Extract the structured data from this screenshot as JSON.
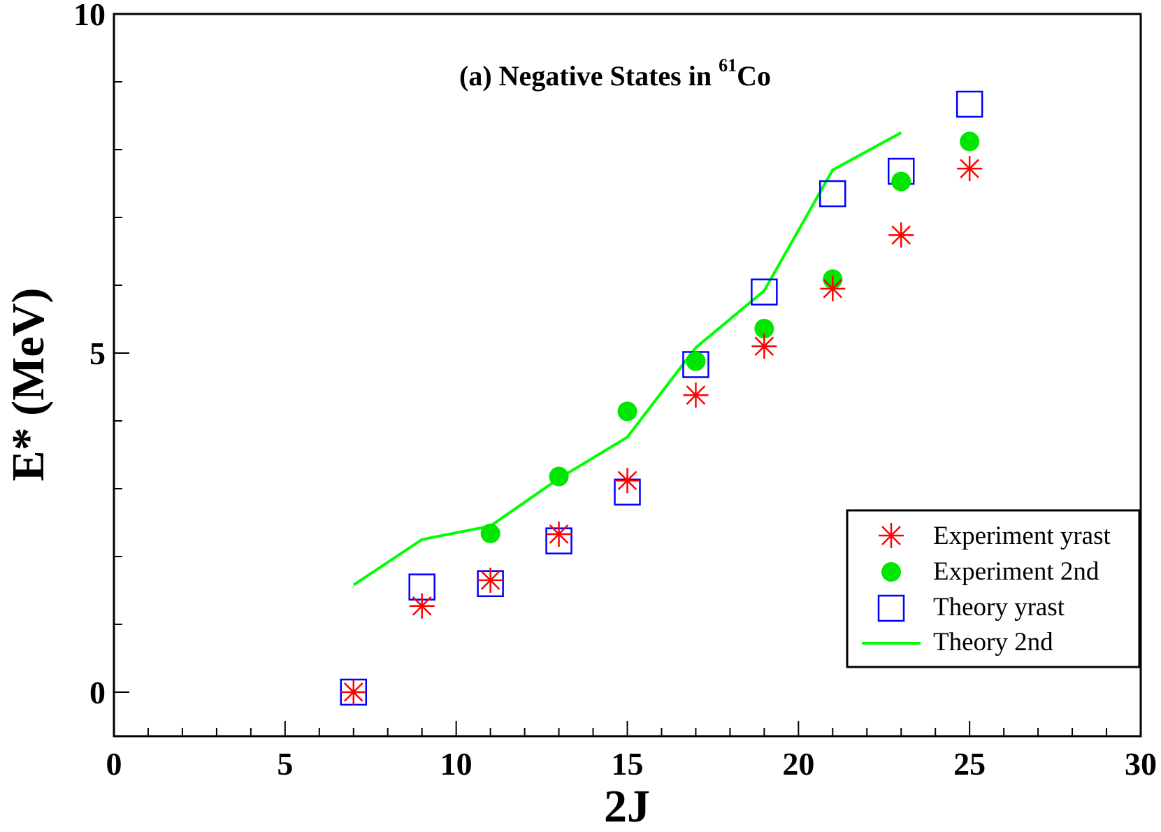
{
  "chart_data": {
    "type": "scatter",
    "title": "(a) Negative States in ",
    "title_superscript": "61",
    "title_suffix": "Co",
    "xlabel": "2J",
    "ylabel": "E* (MeV)",
    "xlim": [
      0,
      30
    ],
    "ylim": [
      -0.65,
      10
    ],
    "x_ticks": [
      0,
      5,
      10,
      15,
      20,
      25,
      30
    ],
    "y_ticks": [
      0,
      5,
      10
    ],
    "x_tick_labels": [
      "0",
      "5",
      "10",
      "15",
      "20",
      "25",
      "30"
    ],
    "y_tick_labels": [
      "0",
      "5",
      "10"
    ],
    "legend_position": "bottom-right",
    "series": [
      {
        "name": "Experiment yrast",
        "marker": "asterisk",
        "color": "#ff0000",
        "x": [
          7,
          9,
          11,
          13,
          15,
          17,
          19,
          21,
          23,
          25
        ],
        "y": [
          0.0,
          1.27,
          1.65,
          2.33,
          3.12,
          4.38,
          5.1,
          5.95,
          6.74,
          7.72
        ]
      },
      {
        "name": "Experiment 2nd",
        "marker": "filled-circle",
        "color": "#00e600",
        "x": [
          11,
          13,
          15,
          17,
          19,
          21,
          23,
          25
        ],
        "y": [
          2.34,
          3.18,
          4.14,
          4.88,
          5.36,
          6.09,
          7.53,
          8.12
        ]
      },
      {
        "name": "Theory yrast",
        "marker": "open-square",
        "color": "#0000ff",
        "x": [
          7,
          9,
          11,
          13,
          15,
          17,
          19,
          21,
          23,
          25
        ],
        "y": [
          0.0,
          1.55,
          1.6,
          2.23,
          2.95,
          4.83,
          5.9,
          7.35,
          7.68,
          8.67
        ]
      },
      {
        "name": "Theory 2nd",
        "marker": "line",
        "color": "#00ff00",
        "x": [
          7,
          9,
          11,
          13,
          15,
          17,
          19,
          21,
          23
        ],
        "y": [
          1.58,
          2.25,
          2.45,
          3.15,
          3.76,
          5.08,
          5.92,
          7.7,
          8.25
        ]
      }
    ]
  }
}
